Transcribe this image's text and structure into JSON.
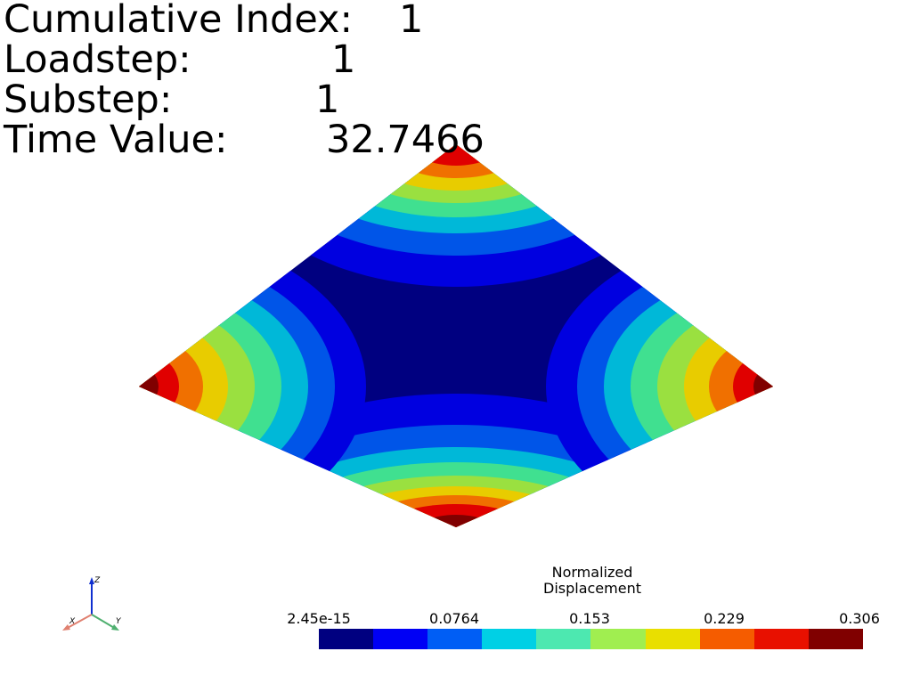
{
  "info": {
    "cumulative_label": "Cumulative Index:",
    "cumulative_value": "1",
    "loadstep_label": "Loadstep:",
    "loadstep_value": "1",
    "substep_label": "Substep:",
    "substep_value": "1",
    "time_label": "Time Value:",
    "time_value": "32.7466"
  },
  "colorbar": {
    "title_line1": "Normalized",
    "title_line2": "Displacement",
    "ticks": [
      "2.45e-15",
      "0.0764",
      "0.153",
      "0.229",
      "0.306"
    ],
    "colors": [
      "#000080",
      "#0000f5",
      "#005ef5",
      "#00d0e5",
      "#4de8b0",
      "#a0ee50",
      "#e9df00",
      "#f55c00",
      "#e81000",
      "#800000"
    ]
  },
  "triad": {
    "x": "X",
    "y": "Y",
    "z": "Z"
  }
}
